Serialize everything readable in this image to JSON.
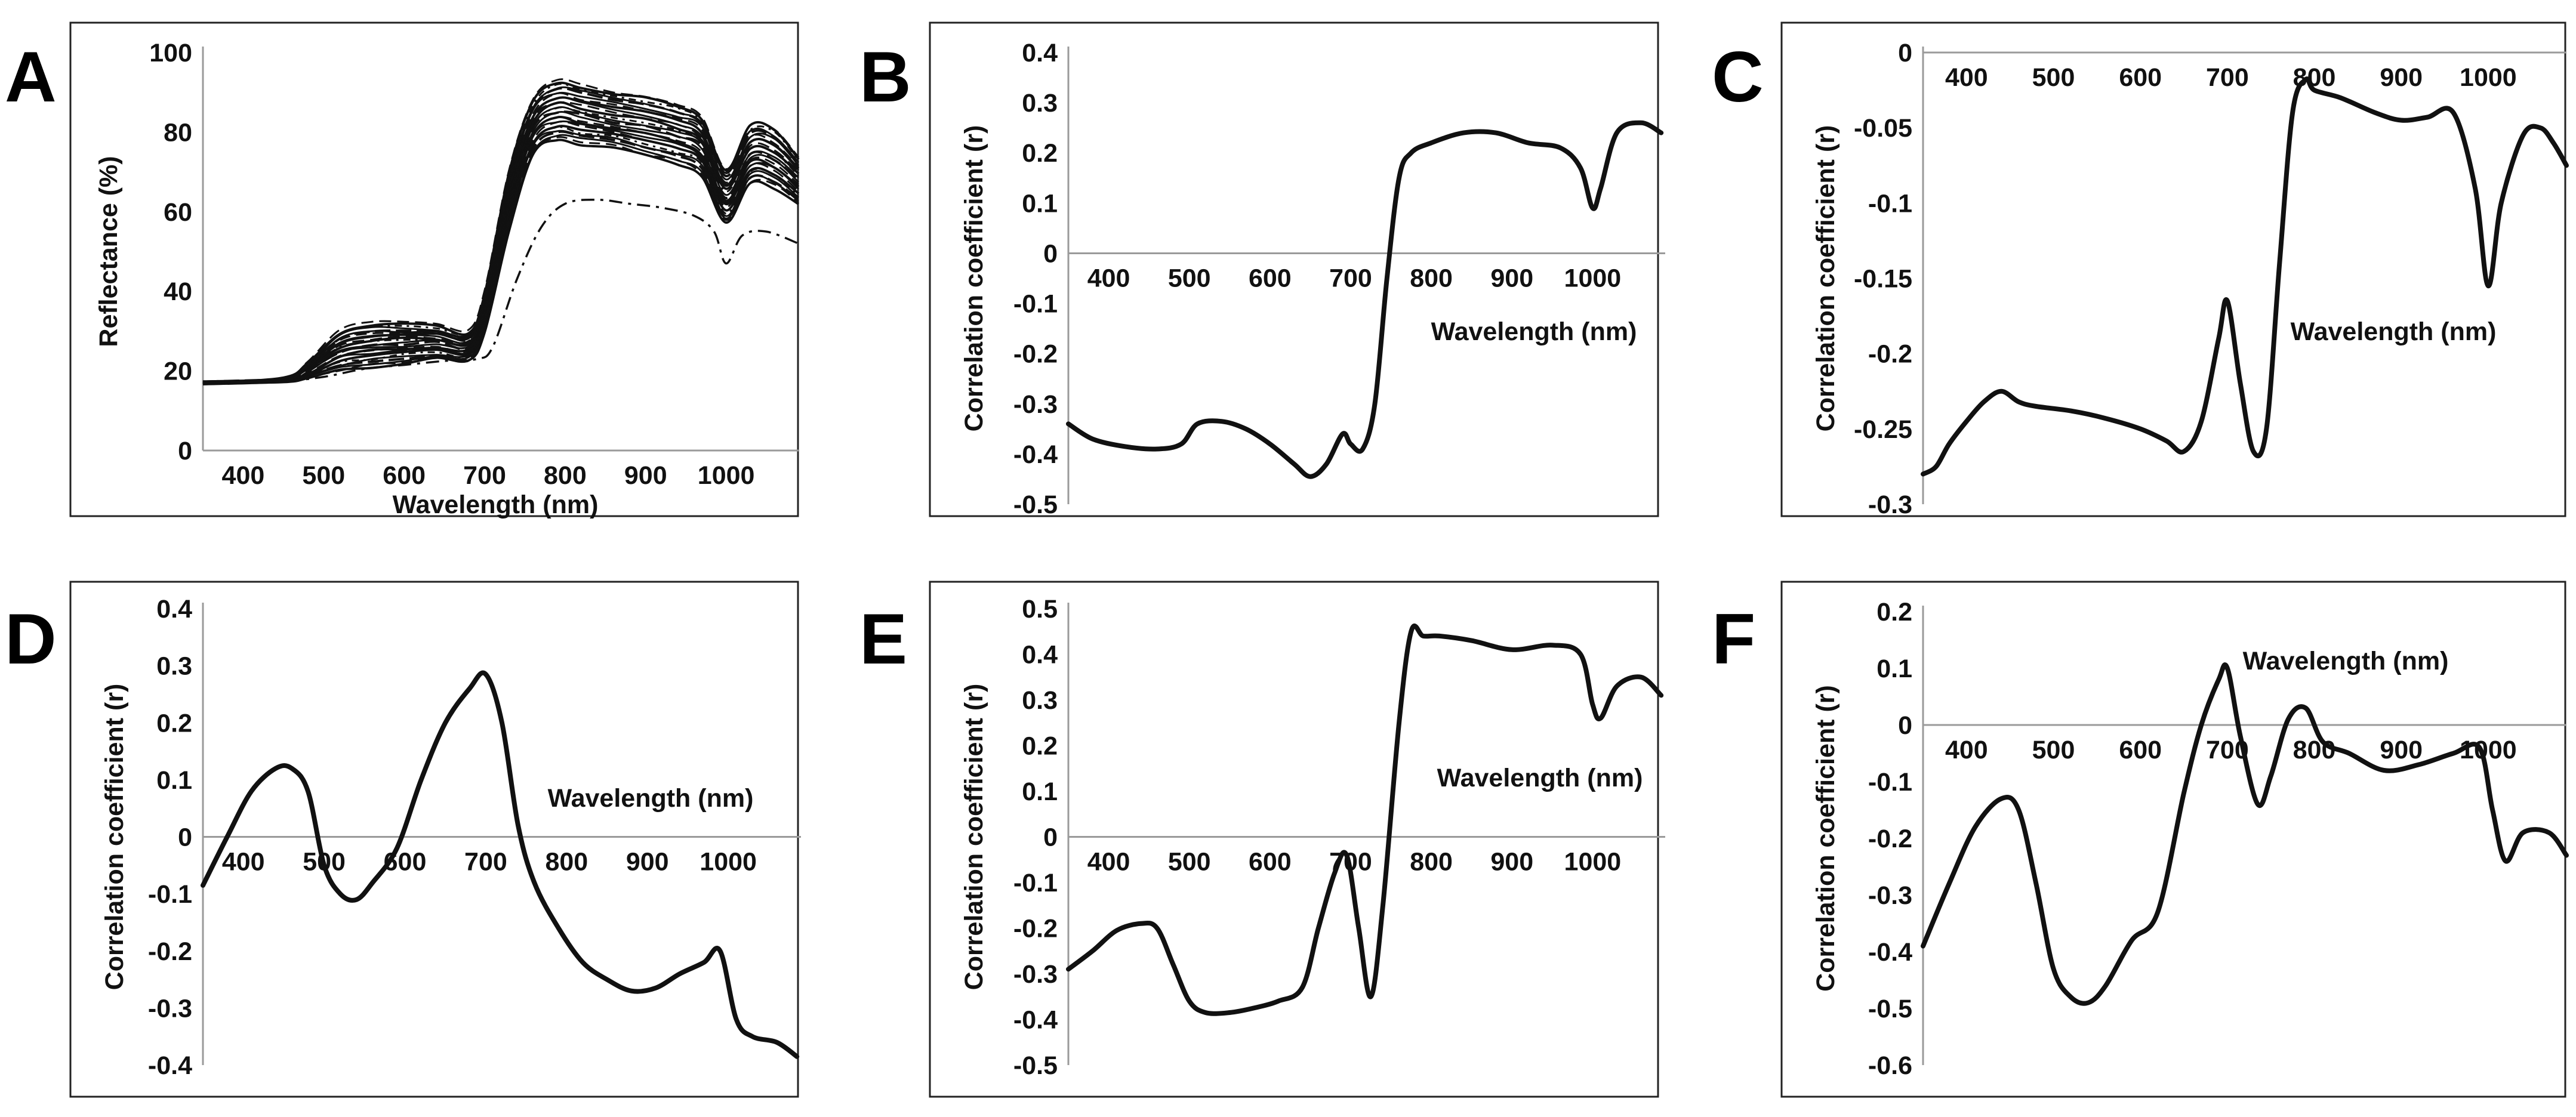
{
  "panel_letters": [
    "A",
    "B",
    "C",
    "D",
    "E",
    "F"
  ],
  "chart_data": [
    {
      "panel": "A",
      "type": "line",
      "xlabel": "Wavelength (nm)",
      "ylabel": "Reflectance (%)",
      "xlim": [
        350,
        1090
      ],
      "ylim": [
        0,
        100
      ],
      "xticks": [
        400,
        500,
        600,
        700,
        800,
        900,
        1000
      ],
      "yticks": [
        0,
        20,
        40,
        60,
        80,
        100
      ],
      "grid": false,
      "envelope": {
        "x": [
          350,
          450,
          480,
          520,
          560,
          600,
          640,
          680,
          700,
          730,
          760,
          790,
          820,
          860,
          900,
          940,
          970,
          1000,
          1030,
          1060,
          1090
        ],
        "low": [
          17,
          17.5,
          18,
          20,
          21,
          22,
          23,
          22.5,
          30,
          55,
          74,
          78,
          77,
          76,
          74,
          72,
          69,
          57,
          67,
          66,
          62
        ],
        "high": [
          17,
          18,
          22,
          30,
          32,
          32,
          31.5,
          30,
          40,
          70,
          88,
          93,
          92,
          90,
          89,
          87,
          84,
          71,
          82,
          81,
          74
        ]
      },
      "outlier_curve": {
        "x": [
          350,
          450,
          500,
          550,
          600,
          650,
          690,
          710,
          740,
          770,
          800,
          840,
          880,
          920,
          960,
          985,
          1000,
          1020,
          1050,
          1090
        ],
        "y": [
          17,
          17.5,
          18.5,
          20.5,
          21.5,
          22.5,
          23,
          26,
          43,
          56,
          62,
          63,
          62,
          61,
          59,
          55,
          47,
          54,
          55,
          52
        ]
      }
    },
    {
      "panel": "B",
      "type": "line",
      "xlabel": "Wavelength (nm)",
      "ylabel": "Correlation coefficient (r)",
      "xlim": [
        350,
        1090
      ],
      "ylim": [
        -0.5,
        0.4
      ],
      "xticks": [
        400,
        500,
        600,
        700,
        800,
        900,
        1000
      ],
      "yticks": [
        -0.5,
        -0.4,
        -0.3,
        -0.2,
        -0.1,
        0,
        0.1,
        0.2,
        0.3,
        0.4
      ],
      "grid": false,
      "series": [
        {
          "x": [
            350,
            380,
            420,
            460,
            490,
            510,
            540,
            570,
            600,
            630,
            650,
            670,
            690,
            700,
            715,
            730,
            745,
            760,
            775,
            800,
            840,
            880,
            920,
            960,
            985,
            1000,
            1010,
            1030,
            1060,
            1085
          ],
          "y": [
            -0.34,
            -0.37,
            -0.385,
            -0.39,
            -0.38,
            -0.34,
            -0.335,
            -0.35,
            -0.38,
            -0.42,
            -0.445,
            -0.42,
            -0.36,
            -0.38,
            -0.39,
            -0.3,
            -0.05,
            0.15,
            0.2,
            0.22,
            0.24,
            0.24,
            0.22,
            0.21,
            0.17,
            0.09,
            0.13,
            0.24,
            0.26,
            0.24
          ]
        }
      ]
    },
    {
      "panel": "C",
      "type": "line",
      "xlabel": "Wavelength (nm)",
      "ylabel": "Correlation coefficient (r)",
      "xlim": [
        350,
        1090
      ],
      "ylim": [
        -0.3,
        0
      ],
      "xticks": [
        400,
        500,
        600,
        700,
        800,
        900,
        1000
      ],
      "yticks": [
        -0.3,
        -0.25,
        -0.2,
        -0.15,
        -0.1,
        -0.05,
        0
      ],
      "grid": false,
      "series": [
        {
          "x": [
            350,
            365,
            380,
            400,
            420,
            440,
            460,
            480,
            520,
            560,
            600,
            630,
            650,
            670,
            690,
            700,
            715,
            730,
            745,
            760,
            775,
            790,
            800,
            830,
            870,
            900,
            930,
            960,
            985,
            1000,
            1015,
            1040,
            1060,
            1075,
            1090
          ],
          "y": [
            -0.28,
            -0.275,
            -0.26,
            -0.245,
            -0.232,
            -0.225,
            -0.232,
            -0.235,
            -0.238,
            -0.243,
            -0.25,
            -0.258,
            -0.265,
            -0.245,
            -0.19,
            -0.165,
            -0.22,
            -0.265,
            -0.25,
            -0.14,
            -0.04,
            -0.018,
            -0.025,
            -0.03,
            -0.04,
            -0.045,
            -0.043,
            -0.04,
            -0.09,
            -0.155,
            -0.1,
            -0.055,
            -0.05,
            -0.06,
            -0.075
          ]
        }
      ]
    },
    {
      "panel": "D",
      "type": "line",
      "xlabel": "Wavelength (nm)",
      "ylabel": "Correlation coefficient (r)",
      "xlim": [
        350,
        1090
      ],
      "ylim": [
        -0.4,
        0.4
      ],
      "xticks": [
        400,
        500,
        600,
        700,
        800,
        900,
        1000
      ],
      "yticks": [
        -0.4,
        -0.3,
        -0.2,
        -0.1,
        0,
        0.1,
        0.2,
        0.3,
        0.4
      ],
      "grid": false,
      "series": [
        {
          "x": [
            350,
            380,
            410,
            440,
            460,
            480,
            500,
            520,
            540,
            560,
            590,
            620,
            650,
            680,
            700,
            720,
            740,
            760,
            790,
            820,
            850,
            880,
            910,
            940,
            970,
            990,
            1010,
            1030,
            1060,
            1085
          ],
          "y": [
            -0.085,
            0.0,
            0.08,
            0.12,
            0.12,
            0.08,
            -0.05,
            -0.1,
            -0.11,
            -0.08,
            -0.02,
            0.1,
            0.2,
            0.26,
            0.285,
            0.2,
            0.02,
            -0.08,
            -0.16,
            -0.22,
            -0.25,
            -0.27,
            -0.265,
            -0.24,
            -0.22,
            -0.2,
            -0.32,
            -0.35,
            -0.36,
            -0.385
          ]
        }
      ]
    },
    {
      "panel": "E",
      "type": "line",
      "xlabel": "Wavelength (nm)",
      "ylabel": "Correlation coefficient (r)",
      "xlim": [
        350,
        1090
      ],
      "ylim": [
        -0.5,
        0.5
      ],
      "xticks": [
        400,
        500,
        600,
        700,
        800,
        900,
        1000
      ],
      "yticks": [
        -0.5,
        -0.4,
        -0.3,
        -0.2,
        -0.1,
        0,
        0.1,
        0.2,
        0.3,
        0.4,
        0.5
      ],
      "grid": false,
      "series": [
        {
          "x": [
            350,
            380,
            410,
            440,
            460,
            480,
            500,
            520,
            550,
            580,
            610,
            640,
            660,
            680,
            695,
            710,
            725,
            740,
            760,
            775,
            790,
            810,
            850,
            900,
            950,
            985,
            1000,
            1010,
            1030,
            1060,
            1085
          ],
          "y": [
            -0.29,
            -0.25,
            -0.205,
            -0.19,
            -0.2,
            -0.28,
            -0.36,
            -0.385,
            -0.385,
            -0.375,
            -0.36,
            -0.33,
            -0.2,
            -0.08,
            -0.04,
            -0.2,
            -0.35,
            -0.15,
            0.25,
            0.45,
            0.44,
            0.44,
            0.43,
            0.41,
            0.42,
            0.4,
            0.29,
            0.26,
            0.33,
            0.35,
            0.31
          ]
        }
      ]
    },
    {
      "panel": "F",
      "type": "line",
      "xlabel": "Wavelength (nm)",
      "ylabel": "Correlation coefficient (r)",
      "xlim": [
        350,
        1090
      ],
      "ylim": [
        -0.6,
        0.2
      ],
      "xticks": [
        400,
        500,
        600,
        700,
        800,
        900,
        1000
      ],
      "yticks": [
        -0.6,
        -0.5,
        -0.4,
        -0.3,
        -0.2,
        -0.1,
        0,
        0.1,
        0.2
      ],
      "grid": false,
      "series": [
        {
          "x": [
            350,
            380,
            410,
            440,
            460,
            480,
            500,
            520,
            540,
            560,
            590,
            620,
            650,
            670,
            690,
            700,
            715,
            735,
            750,
            770,
            790,
            810,
            840,
            880,
            920,
            960,
            990,
            1005,
            1020,
            1040,
            1070,
            1090
          ],
          "y": [
            -0.39,
            -0.28,
            -0.18,
            -0.13,
            -0.15,
            -0.28,
            -0.43,
            -0.48,
            -0.49,
            -0.46,
            -0.38,
            -0.33,
            -0.12,
            0.0,
            0.08,
            0.1,
            -0.02,
            -0.14,
            -0.09,
            0.01,
            0.03,
            -0.03,
            -0.05,
            -0.08,
            -0.07,
            -0.05,
            -0.04,
            -0.15,
            -0.24,
            -0.19,
            -0.19,
            -0.23
          ]
        }
      ]
    }
  ]
}
